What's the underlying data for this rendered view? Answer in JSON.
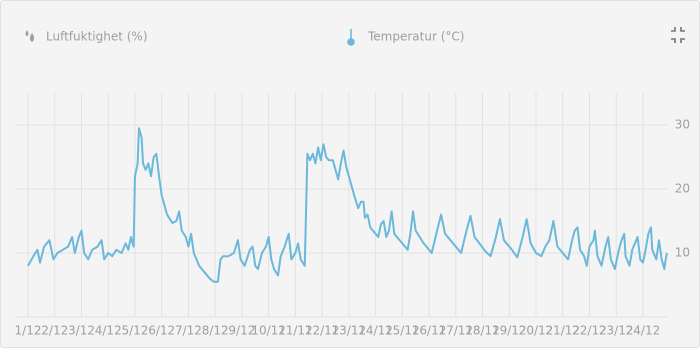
{
  "chart_data": {
    "type": "line",
    "hidden_series": [
      {
        "name": "Luftfuktighet (%)",
        "color": "#9e9e9e"
      }
    ],
    "x": [
      1.0,
      1.2,
      1.35,
      1.45,
      1.6,
      1.8,
      1.95,
      2.1,
      2.3,
      2.5,
      2.65,
      2.75,
      2.9,
      3.0,
      3.1,
      3.25,
      3.4,
      3.6,
      3.75,
      3.85,
      4.0,
      4.15,
      4.3,
      4.5,
      4.65,
      4.75,
      4.85,
      4.95,
      5.0,
      5.1,
      5.15,
      5.25,
      5.3,
      5.4,
      5.5,
      5.6,
      5.7,
      5.8,
      5.9,
      6.0,
      6.2,
      6.4,
      6.55,
      6.65,
      6.75,
      6.9,
      7.0,
      7.1,
      7.2,
      7.4,
      7.6,
      7.8,
      7.95,
      8.1,
      8.2,
      8.3,
      8.5,
      8.7,
      8.85,
      8.95,
      9.1,
      9.3,
      9.4,
      9.5,
      9.6,
      9.75,
      9.9,
      10.0,
      10.1,
      10.2,
      10.35,
      10.45,
      10.6,
      10.75,
      10.85,
      11.0,
      11.1,
      11.2,
      11.35,
      11.45,
      11.55,
      11.65,
      11.75,
      11.85,
      11.95,
      12.05,
      12.15,
      12.25,
      12.4,
      12.5,
      12.6,
      12.7,
      12.8,
      12.9,
      13.0,
      13.2,
      13.35,
      13.45,
      13.55,
      13.6,
      13.7,
      13.8,
      14.0,
      14.1,
      14.2,
      14.3,
      14.4,
      14.5,
      14.6,
      14.7,
      15.0,
      15.2,
      15.3,
      15.4,
      15.5,
      15.8,
      16.1,
      16.3,
      16.45,
      16.6,
      17.0,
      17.2,
      17.4,
      17.55,
      17.7,
      18.1,
      18.3,
      18.5,
      18.65,
      18.8,
      19.1,
      19.3,
      19.5,
      19.65,
      19.8,
      20.0,
      20.2,
      20.35,
      20.5,
      20.65,
      20.8,
      21.0,
      21.2,
      21.35,
      21.45,
      21.55,
      21.65,
      21.8,
      21.9,
      22.0,
      22.15,
      22.2,
      22.3,
      22.45,
      22.6,
      22.7,
      22.8,
      22.95,
      23.1,
      23.2,
      23.3,
      23.35,
      23.5,
      23.6,
      23.7,
      23.8,
      23.9,
      24.0,
      24.1,
      24.2,
      24.3,
      24.35,
      24.5,
      24.6,
      24.7,
      24.8,
      24.85,
      24.9
    ],
    "series": [
      {
        "name": "Temperatur (°C)",
        "color": "#6bb8da",
        "values": [
          8,
          9.5,
          10.5,
          8.5,
          11,
          12,
          9,
          10,
          10.5,
          11,
          12.5,
          10,
          12.5,
          13.5,
          10,
          9,
          10.5,
          11,
          12,
          9,
          10,
          9.5,
          10.5,
          10,
          11.5,
          10.5,
          12.5,
          11,
          22,
          24,
          29.5,
          28,
          24,
          23,
          24,
          22,
          25,
          25.5,
          22,
          19,
          16,
          14.7,
          15,
          16.5,
          13.5,
          12.5,
          11,
          13,
          10,
          8,
          7,
          6,
          5.5,
          5.5,
          9,
          9.5,
          9.5,
          10,
          12,
          9,
          8,
          10.5,
          11,
          8,
          7.5,
          10,
          11,
          12.5,
          9,
          7.5,
          6.5,
          9.5,
          11,
          13,
          9,
          10,
          11.5,
          9,
          8,
          25.5,
          24.5,
          25.5,
          24,
          26.5,
          24.5,
          27,
          25,
          24.5,
          24.5,
          23,
          21.5,
          24,
          26,
          23.5,
          22,
          19,
          17,
          18,
          18,
          15.5,
          16,
          14,
          13,
          12.5,
          14.5,
          15,
          12.5,
          13.5,
          16.5,
          13,
          11.5,
          10.5,
          13,
          16.5,
          13.5,
          11.5,
          10,
          13.5,
          16,
          13,
          11,
          10,
          13.5,
          15.8,
          12.5,
          10.3,
          9.5,
          12.5,
          15.3,
          12,
          10.5,
          9.3,
          12.5,
          15.3,
          11.5,
          10,
          9.5,
          11,
          12,
          15,
          11,
          10,
          9,
          12,
          13.5,
          14,
          10.5,
          9.5,
          8,
          11,
          12,
          13.5,
          9.5,
          8,
          11,
          12.5,
          9,
          7.5,
          10.5,
          12,
          13,
          9.5,
          8,
          10.5,
          11.5,
          12.5,
          9,
          8.5,
          10.5,
          13,
          14,
          10.5,
          9,
          12,
          9,
          7.5,
          9,
          10
        ]
      }
    ],
    "xlim": [
      0.55,
      24.9
    ],
    "xticks": [
      {
        "value": 1,
        "label": "1/12"
      },
      {
        "value": 2,
        "label": "2/12"
      },
      {
        "value": 3,
        "label": "3/12"
      },
      {
        "value": 4,
        "label": "4/12"
      },
      {
        "value": 5,
        "label": "5/12"
      },
      {
        "value": 6,
        "label": "6/12"
      },
      {
        "value": 7,
        "label": "7/12"
      },
      {
        "value": 8,
        "label": "8/12"
      },
      {
        "value": 9,
        "label": "9/12"
      },
      {
        "value": 10,
        "label": "10/12"
      },
      {
        "value": 11,
        "label": "11/12"
      },
      {
        "value": 12,
        "label": "12/12"
      },
      {
        "value": 13,
        "label": "13/12"
      },
      {
        "value": 14,
        "label": "14/12"
      },
      {
        "value": 15,
        "label": "15/12"
      },
      {
        "value": 16,
        "label": "16/12"
      },
      {
        "value": 17,
        "label": "17/12"
      },
      {
        "value": 18,
        "label": "18/12"
      },
      {
        "value": 19,
        "label": "19/12"
      },
      {
        "value": 20,
        "label": "20/12"
      },
      {
        "value": 21,
        "label": "21/12"
      },
      {
        "value": 22,
        "label": "22/12"
      },
      {
        "value": 23,
        "label": "23/12"
      },
      {
        "value": 24,
        "label": "24/12"
      }
    ],
    "ylim": [
      0,
      35
    ],
    "yticks": [
      10,
      20,
      30
    ],
    "grid": true
  }
}
